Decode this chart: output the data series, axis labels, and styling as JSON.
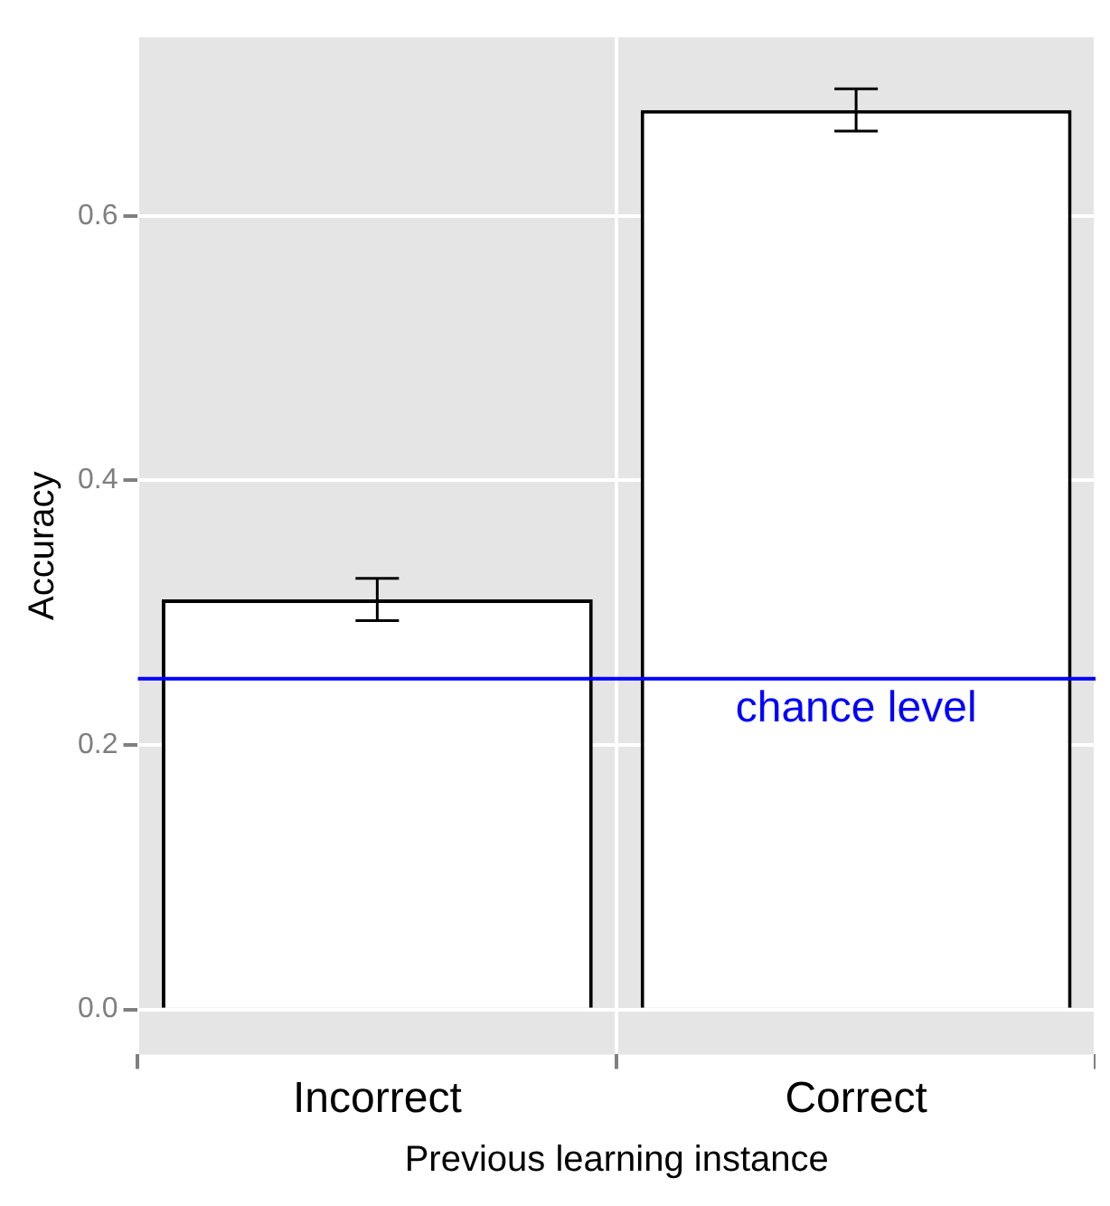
{
  "chart_data": {
    "type": "bar",
    "xlabel": "Previous learning instance",
    "ylabel": "Accuracy",
    "categories": [
      "Incorrect",
      "Correct"
    ],
    "values": [
      0.31,
      0.68
    ],
    "errors": [
      0.016,
      0.016
    ],
    "color": "#ffffff",
    "ylim": [
      -0.034,
      0.735
    ],
    "yticks": [
      {
        "value": 0,
        "label": "0.0"
      },
      {
        "value": 0.2,
        "label": "0.2"
      },
      {
        "value": 0.4,
        "label": "0.4"
      },
      {
        "value": 0.6,
        "label": "0.6"
      }
    ],
    "grid": true,
    "legend": false,
    "ref_lines": [
      {
        "axis": "y",
        "value": 0.25,
        "label": "chance level",
        "color": "#0000ff"
      }
    ]
  }
}
